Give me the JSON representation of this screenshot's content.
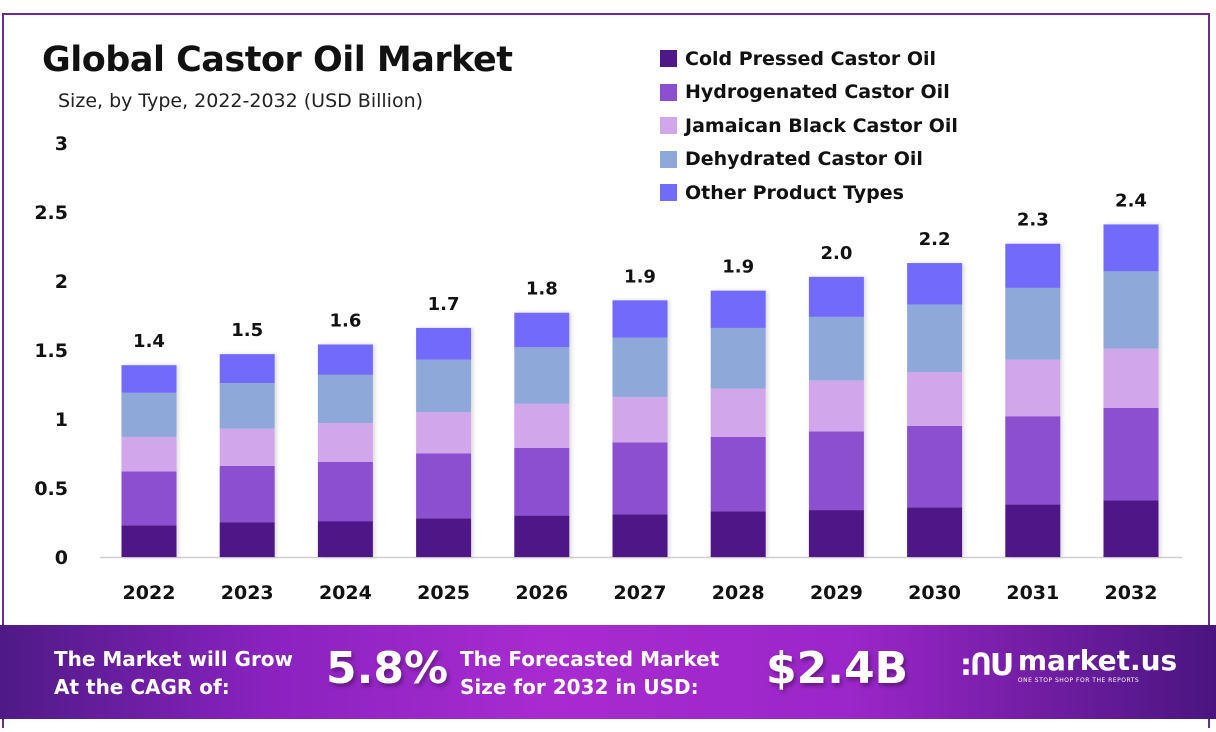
{
  "header": {
    "title": "Global Castor Oil Market",
    "subtitle": "Size, by Type, 2022-2032 (USD Billion)"
  },
  "chart_data": {
    "type": "bar",
    "stacked": true,
    "title": "Global Castor Oil Market",
    "subtitle": "Size, by Type, 2022-2032 (USD Billion)",
    "xlabel": "",
    "ylabel": "",
    "ylim": [
      0,
      3
    ],
    "yticks": [
      "0",
      "0.5",
      "1",
      "1.5",
      "2",
      "2.5",
      "3"
    ],
    "ytick_values": [
      0,
      0.5,
      1,
      1.5,
      2,
      2.5,
      3
    ],
    "grid": false,
    "legend_position": "top-right",
    "categories": [
      "2022",
      "2023",
      "2024",
      "2025",
      "2026",
      "2027",
      "2028",
      "2029",
      "2030",
      "2031",
      "2032"
    ],
    "totals_labels": [
      "1.4",
      "1.5",
      "1.6",
      "1.7",
      "1.8",
      "1.9",
      "1.9",
      "2.0",
      "2.2",
      "2.3",
      "2.4"
    ],
    "series": [
      {
        "name": "Cold Pressed Castor Oil",
        "color": "#4f1787",
        "values": [
          0.23,
          0.25,
          0.26,
          0.28,
          0.3,
          0.31,
          0.33,
          0.34,
          0.36,
          0.38,
          0.41
        ]
      },
      {
        "name": "Hydrogenated Castor Oil",
        "color": "#8c4fcf",
        "values": [
          0.39,
          0.41,
          0.43,
          0.47,
          0.49,
          0.52,
          0.54,
          0.57,
          0.59,
          0.64,
          0.67
        ]
      },
      {
        "name": "Jamaican Black Castor Oil",
        "color": "#d2a6ea",
        "values": [
          0.25,
          0.27,
          0.28,
          0.3,
          0.32,
          0.33,
          0.35,
          0.37,
          0.39,
          0.41,
          0.43
        ]
      },
      {
        "name": "Dehydrated Castor Oil",
        "color": "#8fa8da",
        "values": [
          0.32,
          0.33,
          0.35,
          0.38,
          0.41,
          0.43,
          0.44,
          0.46,
          0.49,
          0.52,
          0.56
        ]
      },
      {
        "name": "Other Product Types",
        "color": "#716bfa",
        "values": [
          0.2,
          0.21,
          0.22,
          0.23,
          0.25,
          0.27,
          0.27,
          0.29,
          0.3,
          0.32,
          0.34
        ]
      }
    ]
  },
  "footer": {
    "cagr_label_line1": "The Market will Grow",
    "cagr_label_line2": "At the CAGR of:",
    "cagr_value": "5.8%",
    "forecast_label_line1": "The Forecasted Market",
    "forecast_label_line2": "Size for 2032 in USD:",
    "forecast_value": "$2.4B",
    "brand_name": "market.us",
    "brand_tagline": "ONE STOP SHOP FOR THE REPORTS",
    "brand_icon": "market-us-logo-icon"
  }
}
